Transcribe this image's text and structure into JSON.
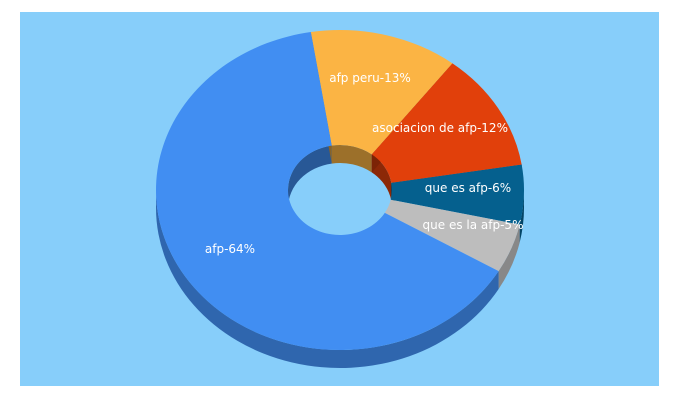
{
  "chart_data": {
    "type": "pie",
    "style": "3d-donut",
    "slices": [
      {
        "label": "afp peru-13%",
        "name": "afp peru",
        "value": 13,
        "color": "#fbb444"
      },
      {
        "label": "asociacion de afp-12%",
        "name": "asociacion de afp",
        "value": 12,
        "color": "#e1400b"
      },
      {
        "label": "que es afp-6%",
        "name": "que es afp",
        "value": 6,
        "color": "#05608e"
      },
      {
        "label": "que es la afp-5%",
        "name": "que es la afp",
        "value": 5,
        "color": "#bdbdbd"
      },
      {
        "label": "afp-64%",
        "name": "afp",
        "value": 64,
        "color": "#418ef2"
      }
    ],
    "background_color": "#87cefa"
  }
}
